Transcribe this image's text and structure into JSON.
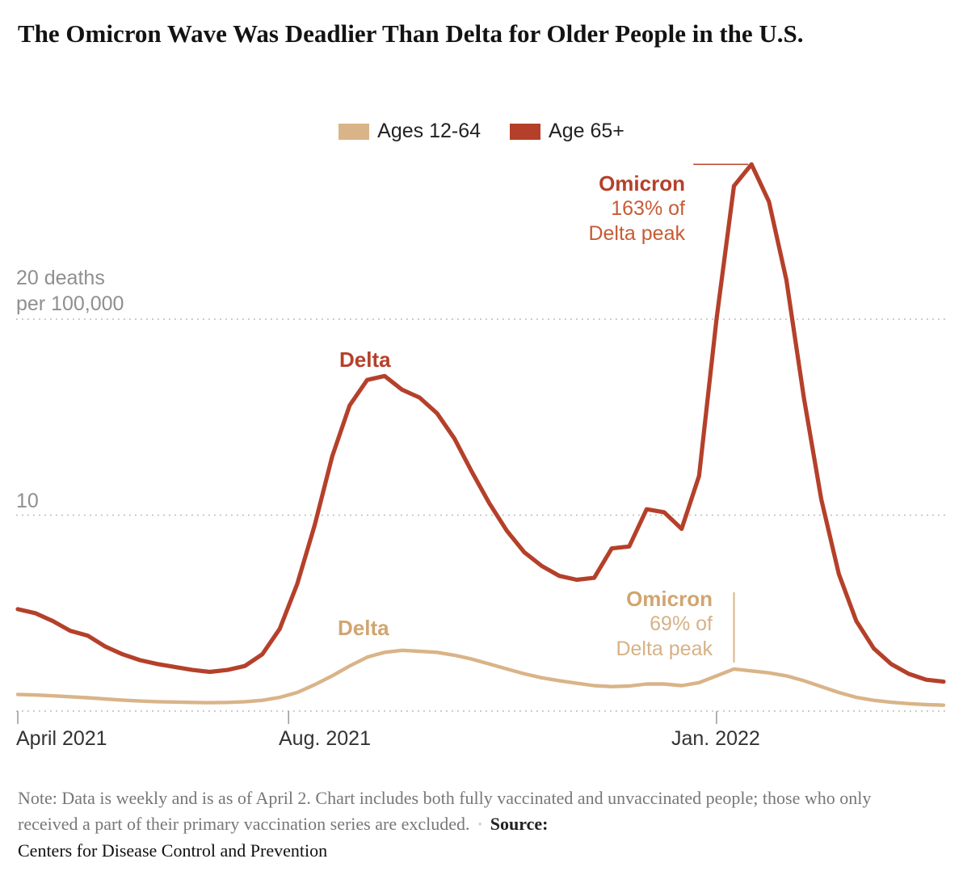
{
  "title": "The Omicron Wave Was Deadlier Than Delta for Older People in the U.S.",
  "legend": [
    {
      "label": "Ages 12-64",
      "color": "#d9b488"
    },
    {
      "label": "Age 65+",
      "color": "#b5402a"
    }
  ],
  "y_axis": {
    "top_label_line1": "20 deaths",
    "top_label_line2": "per 100,000",
    "mid_label": "10"
  },
  "x_axis": {
    "ticks": [
      {
        "label": "April 2021",
        "week_index": 0
      },
      {
        "label": "Aug. 2021",
        "week_index": 15.5
      },
      {
        "label": "Jan. 2022",
        "week_index": 40
      }
    ]
  },
  "annotations": {
    "omicron_65": {
      "line1": "Omicron",
      "line2": "163% of",
      "line3": "Delta peak"
    },
    "delta_65": "Delta",
    "delta_12_64": "Delta",
    "omicron_12_64": {
      "line1": "Omicron",
      "line2": "69% of",
      "line3": "Delta peak"
    }
  },
  "note": {
    "text": "Note: Data is weekly and is as of April 2. Chart includes both fully vaccinated and unvaccinated people; those who only received a part of their primary vaccination series are excluded.",
    "bullet": "•",
    "source_label": "Source:",
    "source": "Centers for Disease Control and Prevention"
  },
  "colors": {
    "age_12_64_line": "#d9b488",
    "age_65_line": "#b5402a",
    "grid": "#b5b5b5",
    "tick": "#999999",
    "axis_gray_text": "#8f8f8f"
  },
  "chart_data": {
    "type": "line",
    "x_unit": "weekly data points from April 2021 through April 2, 2022",
    "x_tick_labels": [
      "April 2021",
      "Aug. 2021",
      "Jan. 2022"
    ],
    "ylabel": "deaths per 100,000",
    "ylim": [
      0,
      29
    ],
    "gridlines": [
      0,
      10,
      20
    ],
    "legend_position": "top-center",
    "series": [
      {
        "name": "Ages 12-64",
        "color": "#d9b488",
        "peak_annotation": "Omicron 69% of Delta peak",
        "values": [
          0.85,
          0.82,
          0.78,
          0.73,
          0.68,
          0.62,
          0.56,
          0.51,
          0.48,
          0.46,
          0.44,
          0.43,
          0.44,
          0.48,
          0.55,
          0.7,
          0.95,
          1.35,
          1.8,
          2.3,
          2.75,
          3.0,
          3.1,
          3.05,
          3.0,
          2.85,
          2.65,
          2.4,
          2.15,
          1.9,
          1.7,
          1.55,
          1.42,
          1.3,
          1.25,
          1.28,
          1.38,
          1.38,
          1.3,
          1.45,
          1.8,
          2.15,
          2.05,
          1.95,
          1.8,
          1.55,
          1.25,
          0.95,
          0.7,
          0.55,
          0.45,
          0.38,
          0.33,
          0.3
        ]
      },
      {
        "name": "Age 65+",
        "color": "#b5402a",
        "peak_annotation": "Omicron 163% of Delta peak",
        "values": [
          5.2,
          5.0,
          4.6,
          4.1,
          3.85,
          3.3,
          2.9,
          2.6,
          2.4,
          2.25,
          2.1,
          2.0,
          2.1,
          2.3,
          2.9,
          4.2,
          6.5,
          9.5,
          13.0,
          15.6,
          16.9,
          17.1,
          16.4,
          16.0,
          15.2,
          13.9,
          12.2,
          10.6,
          9.2,
          8.1,
          7.4,
          6.9,
          6.7,
          6.8,
          8.3,
          8.4,
          10.3,
          10.15,
          9.3,
          12.0,
          20.0,
          26.8,
          27.9,
          26.0,
          22.0,
          16.0,
          10.8,
          7.0,
          4.6,
          3.2,
          2.4,
          1.9,
          1.6,
          1.5
        ]
      }
    ]
  }
}
